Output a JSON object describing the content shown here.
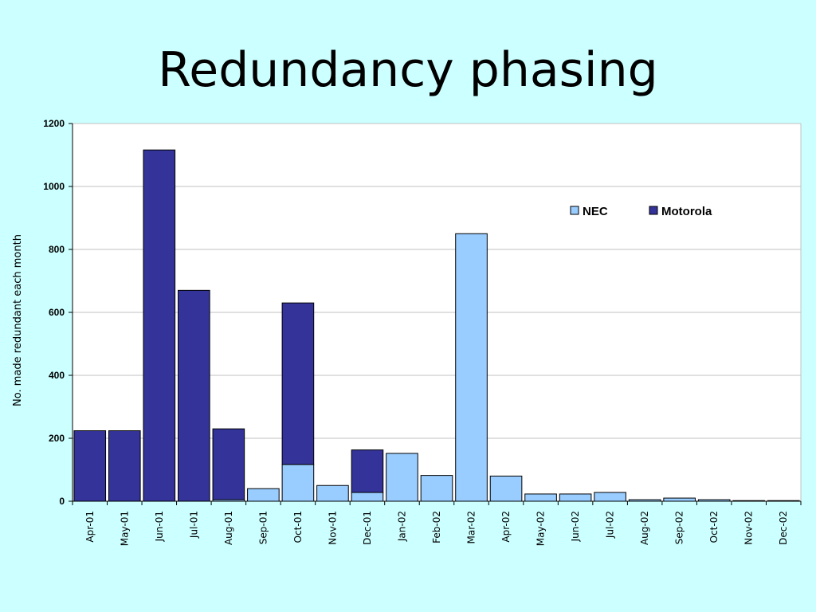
{
  "slide": {
    "title": "Redundancy phasing"
  },
  "chart_data": {
    "type": "bar",
    "stacked": true,
    "title": "",
    "xlabel": "",
    "ylabel": "No. made redundant each month",
    "ylim": [
      0,
      1200
    ],
    "yticks": [
      0,
      200,
      400,
      600,
      800,
      1000,
      1200
    ],
    "grid": true,
    "legend": "top-right",
    "categories": [
      "Apr-01",
      "May-01",
      "Jun-01",
      "Jul-01",
      "Aug-01",
      "Sep-01",
      "Oct-01",
      "Nov-01",
      "Dec-01",
      "Jan-02",
      "Feb-02",
      "Mar-02",
      "Apr-02",
      "May-02",
      "Jun-02",
      "Jul-02",
      "Aug-02",
      "Sep-02",
      "Oct-02",
      "Nov-02",
      "Dec-02"
    ],
    "series": [
      {
        "name": "NEC",
        "color": "#99ccff",
        "values": [
          0,
          0,
          0,
          0,
          5,
          40,
          117,
          50,
          28,
          152,
          82,
          850,
          80,
          23,
          23,
          28,
          5,
          10,
          5,
          2,
          2
        ]
      },
      {
        "name": "Motorola",
        "color": "#333399",
        "values": [
          224,
          224,
          1116,
          670,
          225,
          0,
          513,
          0,
          135,
          0,
          0,
          0,
          0,
          0,
          0,
          0,
          0,
          0,
          0,
          0,
          0
        ]
      }
    ]
  }
}
